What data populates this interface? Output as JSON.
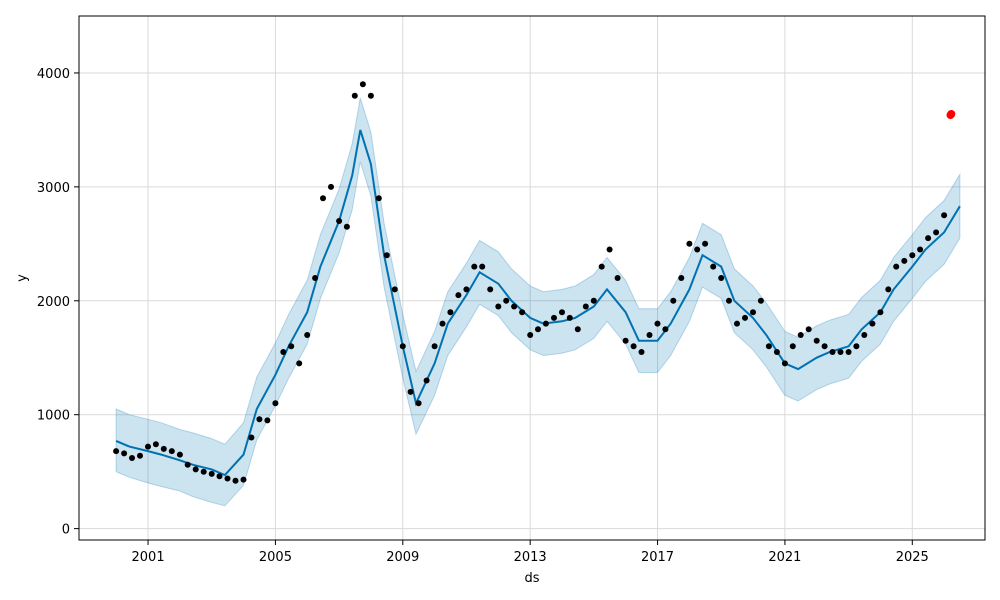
{
  "chart_data": {
    "type": "scatter",
    "xlabel": "ds",
    "ylabel": "y",
    "x_ticks": [
      "2001",
      "2005",
      "2009",
      "2013",
      "2017",
      "2021",
      "2025"
    ],
    "y_ticks": [
      "0",
      "1000",
      "2000",
      "3000",
      "4000"
    ],
    "xlim": [
      "1998-11-01",
      "2027-04-15"
    ],
    "ylim": [
      -100,
      4500
    ],
    "grid": true,
    "colors": {
      "points": "#000000",
      "forecast_line": "#0072B2",
      "uncertainty_band": "#0072B2",
      "highlight_points": "#ff0000",
      "grid": "#d9d9d9"
    },
    "series": [
      {
        "role": "observed",
        "x": [
          "2000-01-01",
          "2000-04-01",
          "2000-07-01",
          "2000-10-01",
          "2001-01-01",
          "2001-04-01",
          "2001-07-01",
          "2001-10-01",
          "2002-01-01",
          "2002-04-01",
          "2002-07-01",
          "2002-10-01",
          "2003-01-01",
          "2003-04-01",
          "2003-07-01",
          "2003-10-01",
          "2004-01-01",
          "2004-04-01",
          "2004-07-01",
          "2004-10-01",
          "2005-01-01",
          "2005-04-01",
          "2005-07-01",
          "2005-10-01",
          "2006-01-01",
          "2006-04-01",
          "2006-07-01",
          "2006-10-01",
          "2007-01-01",
          "2007-04-01",
          "2007-07-01",
          "2007-10-01",
          "2008-01-01",
          "2008-04-01",
          "2008-07-01",
          "2008-10-01",
          "2009-01-01",
          "2009-04-01",
          "2009-07-01",
          "2009-10-01",
          "2010-01-01",
          "2010-04-01",
          "2010-07-01",
          "2010-10-01",
          "2011-01-01",
          "2011-04-01",
          "2011-07-01",
          "2011-10-01",
          "2012-01-01",
          "2012-04-01",
          "2012-07-01",
          "2012-10-01",
          "2013-01-01",
          "2013-04-01",
          "2013-07-01",
          "2013-10-01",
          "2014-01-01",
          "2014-04-01",
          "2014-07-01",
          "2014-10-01",
          "2015-01-01",
          "2015-04-01",
          "2015-07-01",
          "2015-10-01",
          "2016-01-01",
          "2016-04-01",
          "2016-07-01",
          "2016-10-01",
          "2017-01-01",
          "2017-04-01",
          "2017-07-01",
          "2017-10-01",
          "2018-01-01",
          "2018-04-01",
          "2018-07-01",
          "2018-10-01",
          "2019-01-01",
          "2019-04-01",
          "2019-07-01",
          "2019-10-01",
          "2020-01-01",
          "2020-04-01",
          "2020-07-01",
          "2020-10-01",
          "2021-01-01",
          "2021-04-01",
          "2021-07-01",
          "2021-10-01",
          "2022-01-01",
          "2022-04-01",
          "2022-07-01",
          "2022-10-01",
          "2023-01-01",
          "2023-04-01",
          "2023-07-01",
          "2023-10-01",
          "2024-01-01",
          "2024-04-01",
          "2024-07-01",
          "2024-10-01",
          "2025-01-01",
          "2025-04-01",
          "2025-07-01",
          "2025-10-01",
          "2026-01-01"
        ],
        "y": [
          680,
          660,
          620,
          640,
          720,
          740,
          700,
          680,
          650,
          560,
          520,
          500,
          480,
          460,
          440,
          420,
          430,
          800,
          960,
          950,
          1100,
          1550,
          1600,
          1450,
          1700,
          2200,
          2900,
          3000,
          2700,
          2650,
          3800,
          3900,
          3800,
          2900,
          2400,
          2100,
          1600,
          1200,
          1100,
          1300,
          1600,
          1800,
          1900,
          2050,
          2100,
          2300,
          2300,
          2100,
          1950,
          2000,
          1950,
          1900,
          1700,
          1750,
          1800,
          1850,
          1900,
          1850,
          1750,
          1950,
          2000,
          2300,
          2450,
          2200,
          1650,
          1600,
          1550,
          1700,
          1800,
          1750,
          2000,
          2200,
          2500,
          2450,
          2500,
          2300,
          2200,
          2000,
          1800,
          1850,
          1900,
          2000,
          1600,
          1550,
          1450,
          1600,
          1700,
          1750,
          1650,
          1600,
          1550,
          1550,
          1550,
          1600,
          1700,
          1800,
          1900,
          2100,
          2300,
          2350,
          2400,
          2450,
          2550,
          2600,
          2750
        ]
      },
      {
        "role": "forecast",
        "x": [
          "2000-01-01",
          "2000-06-01",
          "2001-01-01",
          "2001-06-01",
          "2002-01-01",
          "2002-06-01",
          "2003-01-01",
          "2003-06-01",
          "2004-01-01",
          "2004-06-01",
          "2005-01-01",
          "2005-06-01",
          "2006-01-01",
          "2006-06-01",
          "2007-01-01",
          "2007-06-01",
          "2007-09-01",
          "2008-01-01",
          "2008-06-01",
          "2009-01-01",
          "2009-06-01",
          "2010-01-01",
          "2010-06-01",
          "2011-01-01",
          "2011-06-01",
          "2012-01-01",
          "2012-06-01",
          "2013-01-01",
          "2013-06-01",
          "2014-01-01",
          "2014-06-01",
          "2015-01-01",
          "2015-06-01",
          "2016-01-01",
          "2016-06-01",
          "2017-01-01",
          "2017-06-01",
          "2018-01-01",
          "2018-06-01",
          "2019-01-01",
          "2019-06-01",
          "2020-01-01",
          "2020-06-01",
          "2021-01-01",
          "2021-06-01",
          "2022-01-01",
          "2022-06-01",
          "2023-01-01",
          "2023-06-01",
          "2024-01-01",
          "2024-06-01",
          "2025-01-01",
          "2025-06-01",
          "2026-01-01",
          "2026-07-01"
        ],
        "yhat": [
          770,
          720,
          680,
          650,
          600,
          560,
          520,
          470,
          650,
          1050,
          1350,
          1600,
          1900,
          2300,
          2700,
          3100,
          3500,
          3200,
          2400,
          1600,
          1100,
          1450,
          1800,
          2050,
          2250,
          2150,
          2000,
          1850,
          1800,
          1820,
          1850,
          1950,
          2100,
          1900,
          1650,
          1650,
          1800,
          2100,
          2400,
          2300,
          2000,
          1850,
          1700,
          1450,
          1400,
          1500,
          1550,
          1600,
          1750,
          1900,
          2100,
          2300,
          2450,
          2600,
          2830
        ],
        "lower": [
          500,
          450,
          400,
          370,
          330,
          280,
          230,
          200,
          380,
          780,
          1080,
          1320,
          1620,
          2020,
          2420,
          2800,
          3220,
          2920,
          2120,
          1320,
          830,
          1170,
          1520,
          1770,
          1970,
          1870,
          1720,
          1570,
          1520,
          1540,
          1570,
          1670,
          1820,
          1620,
          1370,
          1370,
          1520,
          1820,
          2120,
          2020,
          1720,
          1570,
          1420,
          1170,
          1120,
          1220,
          1270,
          1320,
          1470,
          1620,
          1820,
          2020,
          2170,
          2320,
          2550
        ],
        "upper": [
          1050,
          1000,
          960,
          930,
          870,
          840,
          790,
          740,
          930,
          1330,
          1630,
          1880,
          2180,
          2580,
          2980,
          3380,
          3780,
          3480,
          2680,
          1880,
          1380,
          1730,
          2080,
          2330,
          2530,
          2430,
          2280,
          2130,
          2080,
          2100,
          2130,
          2230,
          2380,
          2180,
          1930,
          1930,
          2080,
          2380,
          2680,
          2580,
          2280,
          2130,
          1980,
          1730,
          1680,
          1780,
          1830,
          1880,
          2030,
          2180,
          2380,
          2580,
          2730,
          2880,
          3110
        ]
      },
      {
        "role": "highlighted",
        "x": [
          "2026-03-15",
          "2026-03-25"
        ],
        "y": [
          3630,
          3640
        ]
      }
    ]
  }
}
